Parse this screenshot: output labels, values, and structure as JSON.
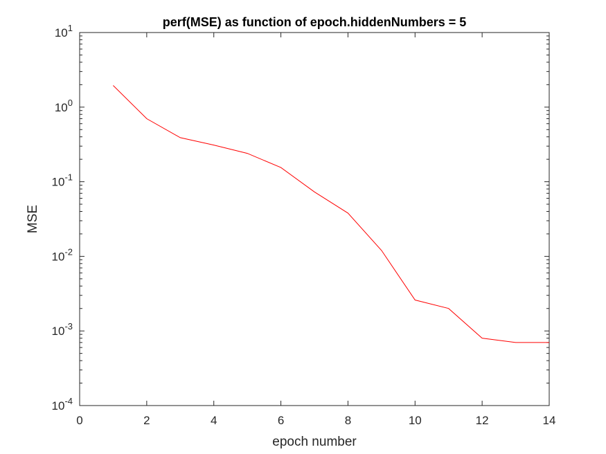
{
  "chart_data": {
    "type": "line",
    "title": "perf(MSE) as function of epoch.hiddenNumbers = 5",
    "xlabel": "epoch number",
    "ylabel": "MSE",
    "xlim": [
      0,
      14
    ],
    "ylim": [
      0.0001,
      10
    ],
    "yscale": "log",
    "grid": false,
    "x_ticks": [
      0,
      2,
      4,
      6,
      8,
      10,
      12,
      14
    ],
    "y_ticks": [
      {
        "base": "10",
        "exp": "-4",
        "value": 0.0001
      },
      {
        "base": "10",
        "exp": "-3",
        "value": 0.001
      },
      {
        "base": "10",
        "exp": "-2",
        "value": 0.01
      },
      {
        "base": "10",
        "exp": "-1",
        "value": 0.1
      },
      {
        "base": "10",
        "exp": "0",
        "value": 1
      },
      {
        "base": "10",
        "exp": "1",
        "value": 10
      }
    ],
    "series": [
      {
        "color": "#ff0000",
        "x": [
          1,
          2,
          3,
          4,
          5,
          6,
          7,
          8,
          9,
          10,
          11,
          12,
          13,
          14
        ],
        "y": [
          1.95,
          0.7,
          0.39,
          0.31,
          0.24,
          0.155,
          0.073,
          0.038,
          0.012,
          0.0026,
          0.002,
          0.0008,
          0.0007,
          0.0007
        ]
      }
    ]
  }
}
